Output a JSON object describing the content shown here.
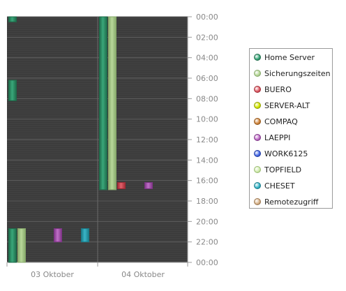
{
  "chart_data": {
    "type": "bar",
    "title": "",
    "xlabel": "",
    "ylabel": "",
    "x_categories": [
      "03 Oktober",
      "04 Oktober"
    ],
    "y_axis": {
      "unit": "time of day",
      "range": [
        "00:00",
        "24:00"
      ],
      "ticks": [
        "00:00",
        "02:00",
        "04:00",
        "06:00",
        "08:00",
        "10:00",
        "12:00",
        "14:00",
        "16:00",
        "18:00",
        "20:00",
        "22:00",
        "00:00"
      ],
      "reversed": false
    },
    "grid": true,
    "legend_position": "right",
    "series": [
      {
        "name": "Home Server",
        "color": "#3aa77a",
        "stroke": "#1e6b4a",
        "bars": [
          {
            "day": "03 Oktober",
            "slot": 0,
            "start_h": 0.0,
            "end_h": 0.5
          },
          {
            "day": "03 Oktober",
            "slot": 0,
            "start_h": 6.2,
            "end_h": 8.2
          },
          {
            "day": "03 Oktober",
            "slot": 0,
            "start_h": 20.7,
            "end_h": 24.0
          },
          {
            "day": "04 Oktober",
            "slot": 0,
            "start_h": 0.0,
            "end_h": 16.9
          }
        ]
      },
      {
        "name": "Sicherungszeiten",
        "color": "#b8d89a",
        "stroke": "#86a86a",
        "bars": [
          {
            "day": "03 Oktober",
            "slot": 1,
            "start_h": 20.7,
            "end_h": 24.0
          },
          {
            "day": "04 Oktober",
            "slot": 1,
            "start_h": 0.0,
            "end_h": 16.9
          }
        ]
      },
      {
        "name": "BUERO",
        "color": "#e0606a",
        "stroke": "#a02a34",
        "bars": [
          {
            "day": "04 Oktober",
            "slot": 2,
            "start_h": 16.2,
            "end_h": 16.8
          }
        ]
      },
      {
        "name": "SERVER-ALT",
        "color": "#d4e800",
        "stroke": "#909e00",
        "bars": []
      },
      {
        "name": "COMPAQ",
        "color": "#d28a44",
        "stroke": "#925416",
        "bars": []
      },
      {
        "name": "LAEPPI",
        "color": "#c070c8",
        "stroke": "#7e3486",
        "bars": [
          {
            "day": "03 Oktober",
            "slot": 5,
            "start_h": 20.7,
            "end_h": 22.0
          },
          {
            "day": "04 Oktober",
            "slot": 5,
            "start_h": 16.2,
            "end_h": 16.8
          }
        ]
      },
      {
        "name": "WORK6125",
        "color": "#4a6ee8",
        "stroke": "#203aa0",
        "bars": []
      },
      {
        "name": "TOPFIELD",
        "color": "#d2ecb0",
        "stroke": "#9abc72",
        "bars": []
      },
      {
        "name": "CHESET",
        "color": "#3ab6c8",
        "stroke": "#1a7a88",
        "bars": [
          {
            "day": "03 Oktober",
            "slot": 8,
            "start_h": 20.7,
            "end_h": 22.0
          }
        ]
      },
      {
        "name": "Remotezugriff",
        "color": "#d8b48c",
        "stroke": "#9a7650",
        "bars": []
      }
    ]
  }
}
